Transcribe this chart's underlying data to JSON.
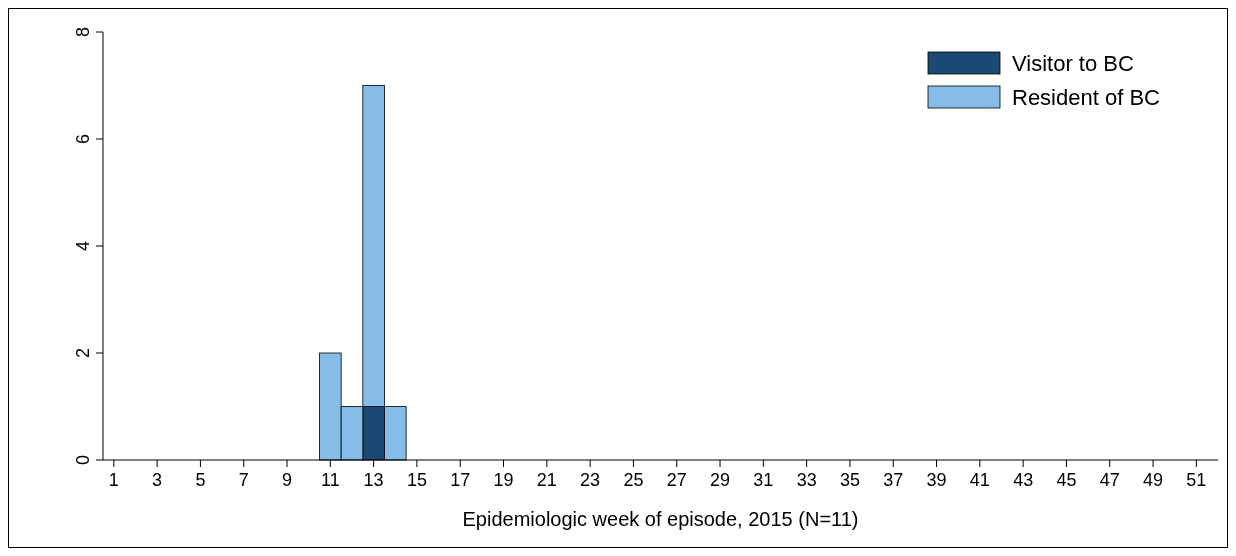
{
  "chart_data": {
    "type": "bar",
    "stacked": true,
    "xlabel": "Epidemiologic week of episode, 2015 (N=11)",
    "x": [
      11,
      12,
      13,
      14
    ],
    "series": [
      {
        "name": "Visitor to BC",
        "color": "#1a4a73",
        "values": [
          null,
          null,
          1,
          null
        ]
      },
      {
        "name": "Resident of BC",
        "color": "#85bde8",
        "values": [
          2,
          1,
          6,
          1
        ]
      }
    ],
    "xlim": [
      0.5,
      52
    ],
    "xticks": [
      1,
      3,
      5,
      7,
      9,
      11,
      13,
      15,
      17,
      19,
      21,
      23,
      25,
      27,
      29,
      31,
      33,
      35,
      37,
      39,
      41,
      43,
      45,
      47,
      49,
      51
    ],
    "ylim": [
      0,
      8
    ],
    "yticks": [
      0,
      2,
      4,
      6,
      8
    ],
    "grid": false,
    "legend": "top right"
  }
}
